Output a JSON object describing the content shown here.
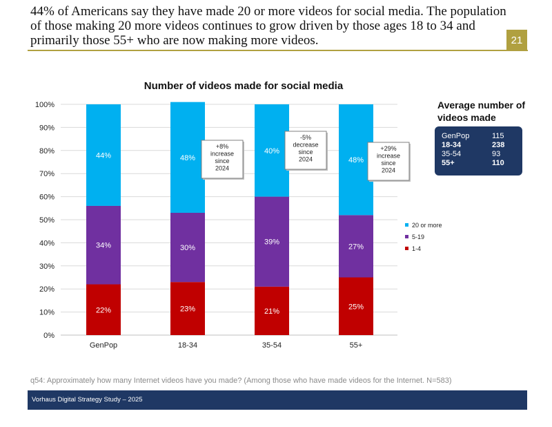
{
  "header": {
    "headline": "44% of Americans say they have made 20 or more videos for social media. The population of those making 20 more videos continues to grow driven by those ages 18 to 34 and primarily those 55+ who are now making more videos.",
    "page_number": "21"
  },
  "chart_data": {
    "type": "bar",
    "stacked": true,
    "title": "Number of videos made for social media",
    "categories": [
      "GenPop",
      "18-34",
      "35-54",
      "55+"
    ],
    "series": [
      {
        "name": "1-4",
        "values": [
          22,
          23,
          21,
          25
        ],
        "labels": [
          "22%",
          "23%",
          "21%",
          "25%"
        ],
        "color": "#c00000"
      },
      {
        "name": "5-19",
        "values": [
          34,
          30,
          39,
          27
        ],
        "labels": [
          "34%",
          "30%",
          "39%",
          "27%"
        ],
        "color": "#7030a0"
      },
      {
        "name": "20 or more",
        "values": [
          44,
          48,
          40,
          48
        ],
        "labels": [
          "44%",
          "48%",
          "40%",
          "48%"
        ],
        "color": "#00b0f0"
      }
    ],
    "ylim": [
      0,
      100
    ],
    "yticks": [
      "0%",
      "10%",
      "20%",
      "30%",
      "40%",
      "50%",
      "60%",
      "70%",
      "80%",
      "90%",
      "100%"
    ],
    "legend": [
      "20 or more",
      "5-19",
      "1-4"
    ],
    "legend_position": "right",
    "annotations": [
      {
        "category": "18-34",
        "lines": [
          "+8%",
          "increase",
          "since",
          "2024"
        ]
      },
      {
        "category": "35-54",
        "lines": [
          "-5%",
          "decrease",
          "since",
          "2024"
        ]
      },
      {
        "category": "55+",
        "lines": [
          "+29%",
          "increase",
          "since",
          "2024"
        ]
      }
    ]
  },
  "average_panel": {
    "title": "Average number of videos made",
    "rows": [
      {
        "group": "GenPop",
        "value": "115",
        "bold": false
      },
      {
        "group": "18-34",
        "value": "238",
        "bold": true
      },
      {
        "group": "35-54",
        "value": "93",
        "bold": false
      },
      {
        "group": "55+",
        "value": "110",
        "bold": true
      }
    ]
  },
  "footnote": "q54: Approximately how many Internet videos have you made? (Among those who have made videos for the Internet. N=583)",
  "footer": "Vorhaus Digital Strategy Study – 2025",
  "colors": {
    "accent": "#b0a040",
    "navy": "#1f3864"
  }
}
